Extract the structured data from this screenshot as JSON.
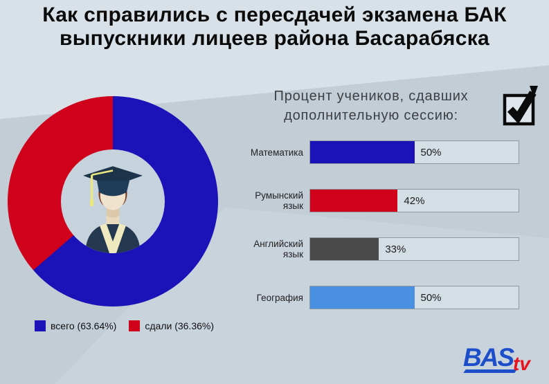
{
  "title": "Как справились с пересдачей экзамена БАК выпускники лицеев района Басарабяска",
  "subtitle": "Процент учеников, сдавших\nдополнительную сессию:",
  "donut": {
    "segments": [
      {
        "label": "всего (63.64%)",
        "value": 63.64,
        "color": "#1b12b7"
      },
      {
        "label": "сдали (36.36%)",
        "value": 36.36,
        "color": "#d0021b"
      }
    ],
    "center_icon": "graduate-student"
  },
  "bars": [
    {
      "label": "Математика",
      "value": 50,
      "display": "50%",
      "color": "#1b12b7"
    },
    {
      "label": "Румынский язык",
      "value": 42,
      "display": "42%",
      "color": "#d0021b"
    },
    {
      "label": "Английский язык",
      "value": 33,
      "display": "33%",
      "color": "#4a4a4a"
    },
    {
      "label": "География",
      "value": 50,
      "display": "50%",
      "color": "#4a90e2"
    }
  ],
  "logo": {
    "text_blue": "BAS",
    "text_red": "tv"
  },
  "colors": {
    "background": "#c2cdd6",
    "bar_track": "#d4dee5",
    "donut_hole": "#c6d3dd"
  },
  "chart_data": [
    {
      "type": "pie",
      "donut": true,
      "title": "Как справились с пересдачей экзамена БАК выпускники лицеев района Басарабяска",
      "labels": [
        "всего",
        "сдали"
      ],
      "values": [
        63.64,
        36.36
      ],
      "value_labels": [
        "всего (63.64%)",
        "сдали (36.36%)"
      ],
      "colors": [
        "#1b12b7",
        "#d0021b"
      ],
      "legend_position": "bottom-left",
      "start_angle_deg": 0,
      "direction": "clockwise"
    },
    {
      "type": "bar",
      "orientation": "horizontal",
      "title": "Процент учеников, сдавших дополнительную сессию:",
      "categories": [
        "Математика",
        "Румынский язык",
        "Английский язык",
        "География"
      ],
      "values": [
        50,
        42,
        33,
        50
      ],
      "value_labels": [
        "50%",
        "42%",
        "33%",
        "50%"
      ],
      "colors": [
        "#1b12b7",
        "#d0021b",
        "#4a4a4a",
        "#4a90e2"
      ],
      "xlim": [
        0,
        100
      ],
      "grid": false,
      "legend_position": "none"
    }
  ]
}
